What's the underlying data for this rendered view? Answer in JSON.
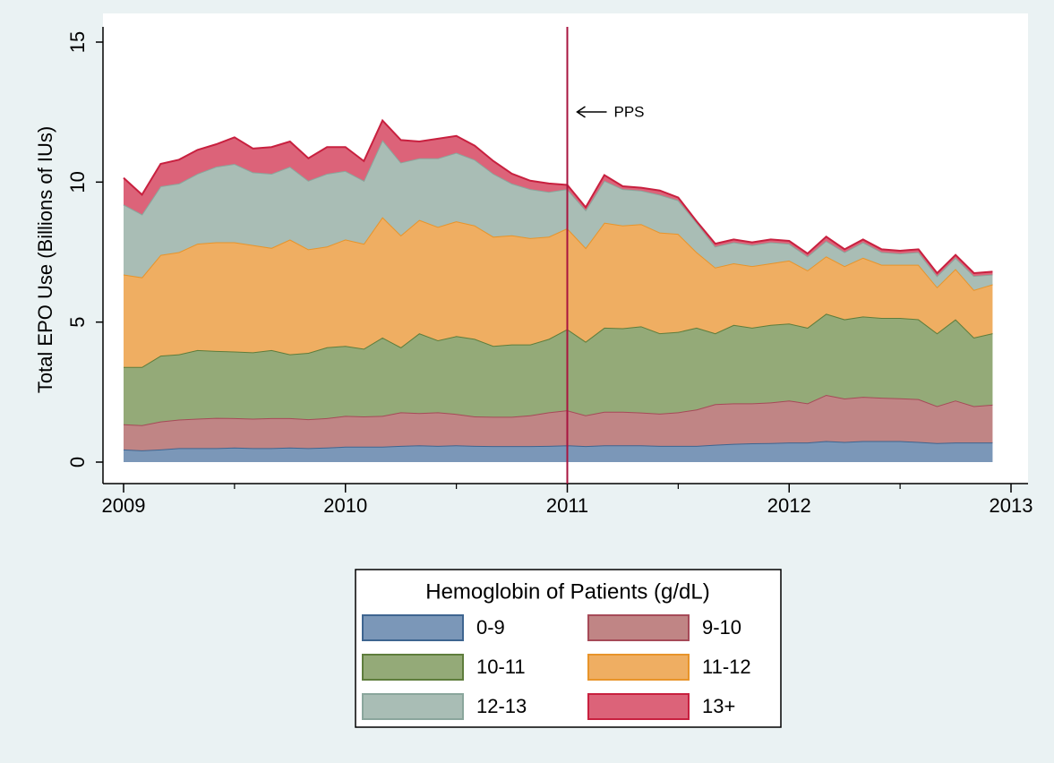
{
  "chart_data": {
    "type": "stacked_area",
    "ylabel": "Total EPO Use (Billions of IUs)",
    "x": [
      2009,
      2009.083,
      2009.167,
      2009.25,
      2009.333,
      2009.417,
      2009.5,
      2009.583,
      2009.667,
      2009.75,
      2009.833,
      2009.917,
      2010,
      2010.083,
      2010.167,
      2010.25,
      2010.333,
      2010.417,
      2010.5,
      2010.583,
      2010.667,
      2010.75,
      2010.833,
      2010.917,
      2011,
      2011.083,
      2011.167,
      2011.25,
      2011.333,
      2011.417,
      2011.5,
      2011.583,
      2011.667,
      2011.75,
      2011.833,
      2011.917,
      2012,
      2012.083,
      2012.167,
      2012.25,
      2012.333,
      2012.417,
      2012.5,
      2012.583,
      2012.667,
      2012.75,
      2012.833,
      2012.917
    ],
    "xlim": [
      2009,
      2013
    ],
    "xticks": [
      2009,
      2010,
      2011,
      2012,
      2013
    ],
    "xminorticks": [
      2009.5,
      2010.5,
      2011.5,
      2012.5
    ],
    "ylim": [
      0,
      15
    ],
    "yticks": [
      0,
      5,
      10,
      15
    ],
    "legend_title": "Hemoglobin of Patients (g/dL)",
    "legend_position": "bottom",
    "annotation": {
      "text": "PPS",
      "x": 2011,
      "color": "#a8143f"
    },
    "series": [
      {
        "name": "0-9",
        "color": "#7b97b8",
        "edgecolor": "#3e6590",
        "values": [
          0.45,
          0.42,
          0.45,
          0.5,
          0.5,
          0.5,
          0.52,
          0.5,
          0.5,
          0.52,
          0.5,
          0.52,
          0.55,
          0.55,
          0.55,
          0.58,
          0.6,
          0.58,
          0.6,
          0.58,
          0.57,
          0.57,
          0.57,
          0.58,
          0.6,
          0.57,
          0.6,
          0.6,
          0.6,
          0.58,
          0.58,
          0.58,
          0.62,
          0.65,
          0.67,
          0.68,
          0.7,
          0.7,
          0.75,
          0.72,
          0.75,
          0.75,
          0.75,
          0.72,
          0.68,
          0.7,
          0.7,
          0.7
        ]
      },
      {
        "name": "9-10",
        "color": "#c08585",
        "edgecolor": "#a64a58",
        "values": [
          0.9,
          0.9,
          1.0,
          1.02,
          1.05,
          1.08,
          1.05,
          1.05,
          1.07,
          1.05,
          1.03,
          1.05,
          1.1,
          1.08,
          1.1,
          1.2,
          1.15,
          1.2,
          1.12,
          1.05,
          1.05,
          1.05,
          1.1,
          1.2,
          1.25,
          1.1,
          1.2,
          1.2,
          1.17,
          1.15,
          1.2,
          1.3,
          1.45,
          1.45,
          1.43,
          1.45,
          1.5,
          1.4,
          1.65,
          1.55,
          1.58,
          1.55,
          1.53,
          1.53,
          1.32,
          1.5,
          1.3,
          1.35
        ]
      },
      {
        "name": "10-11",
        "color": "#94aa78",
        "edgecolor": "#5e7d3c",
        "values": [
          2.05,
          2.08,
          2.35,
          2.33,
          2.45,
          2.39,
          2.38,
          2.37,
          2.43,
          2.28,
          2.37,
          2.53,
          2.5,
          2.42,
          2.8,
          2.32,
          2.85,
          2.57,
          2.78,
          2.77,
          2.53,
          2.58,
          2.53,
          2.62,
          2.9,
          2.63,
          3.0,
          2.98,
          3.08,
          2.87,
          2.87,
          2.92,
          2.53,
          2.8,
          2.7,
          2.77,
          2.75,
          2.7,
          2.9,
          2.83,
          2.87,
          2.85,
          2.87,
          2.85,
          2.6,
          2.9,
          2.45,
          2.55
        ]
      },
      {
        "name": "11-12",
        "color": "#efae62",
        "edgecolor": "#e8942a",
        "values": [
          3.3,
          3.2,
          3.6,
          3.65,
          3.8,
          3.88,
          3.9,
          3.83,
          3.65,
          4.1,
          3.7,
          3.6,
          3.8,
          3.75,
          4.3,
          4.0,
          4.05,
          4.05,
          4.1,
          4.05,
          3.9,
          3.9,
          3.8,
          3.65,
          3.6,
          3.35,
          3.75,
          3.67,
          3.65,
          3.6,
          3.5,
          2.7,
          2.35,
          2.2,
          2.2,
          2.2,
          2.25,
          2.05,
          2.05,
          1.9,
          2.1,
          1.9,
          1.9,
          1.95,
          1.65,
          1.8,
          1.7,
          1.75
        ]
      },
      {
        "name": "12-13",
        "color": "#a9bdb5",
        "edgecolor": "#8aa69c",
        "values": [
          2.5,
          2.25,
          2.45,
          2.45,
          2.5,
          2.7,
          2.8,
          2.6,
          2.65,
          2.6,
          2.45,
          2.6,
          2.45,
          2.25,
          2.75,
          2.6,
          2.2,
          2.45,
          2.45,
          2.35,
          2.25,
          1.85,
          1.75,
          1.6,
          1.4,
          1.35,
          1.5,
          1.3,
          1.2,
          1.35,
          1.2,
          1.05,
          0.75,
          0.75,
          0.75,
          0.75,
          0.6,
          0.5,
          0.55,
          0.5,
          0.55,
          0.45,
          0.4,
          0.45,
          0.4,
          0.4,
          0.5,
          0.35
        ]
      },
      {
        "name": "13+",
        "color": "#dc6379",
        "edgecolor": "#c8203f",
        "values": [
          0.95,
          0.7,
          0.8,
          0.85,
          0.85,
          0.8,
          0.95,
          0.85,
          0.95,
          0.9,
          0.8,
          0.95,
          0.85,
          0.7,
          0.7,
          0.8,
          0.6,
          0.7,
          0.6,
          0.5,
          0.45,
          0.35,
          0.3,
          0.3,
          0.15,
          0.1,
          0.2,
          0.1,
          0.1,
          0.15,
          0.1,
          0.05,
          0.1,
          0.1,
          0.1,
          0.1,
          0.1,
          0.1,
          0.15,
          0.1,
          0.1,
          0.1,
          0.1,
          0.1,
          0.1,
          0.1,
          0.1,
          0.1
        ]
      }
    ]
  }
}
